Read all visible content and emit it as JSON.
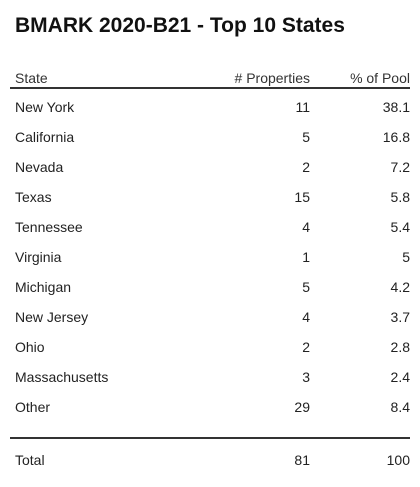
{
  "chart_data": {
    "type": "table",
    "title": "BMARK 2020-B21 - Top 10 States",
    "columns": [
      "State",
      "# Properties",
      "% of Pool"
    ],
    "rows": [
      {
        "state": "New York",
        "properties": "11",
        "pool": "38.1"
      },
      {
        "state": "California",
        "properties": "5",
        "pool": "16.8"
      },
      {
        "state": "Nevada",
        "properties": "2",
        "pool": "7.2"
      },
      {
        "state": "Texas",
        "properties": "15",
        "pool": "5.8"
      },
      {
        "state": "Tennessee",
        "properties": "4",
        "pool": "5.4"
      },
      {
        "state": "Virginia",
        "properties": "1",
        "pool": "5"
      },
      {
        "state": "Michigan",
        "properties": "5",
        "pool": "4.2"
      },
      {
        "state": "New Jersey",
        "properties": "4",
        "pool": "3.7"
      },
      {
        "state": "Ohio",
        "properties": "2",
        "pool": "2.8"
      },
      {
        "state": "Massachusetts",
        "properties": "3",
        "pool": "2.4"
      },
      {
        "state": "Other",
        "properties": "29",
        "pool": "8.4"
      }
    ],
    "total": {
      "state": "Total",
      "properties": "81",
      "pool": "100"
    }
  }
}
